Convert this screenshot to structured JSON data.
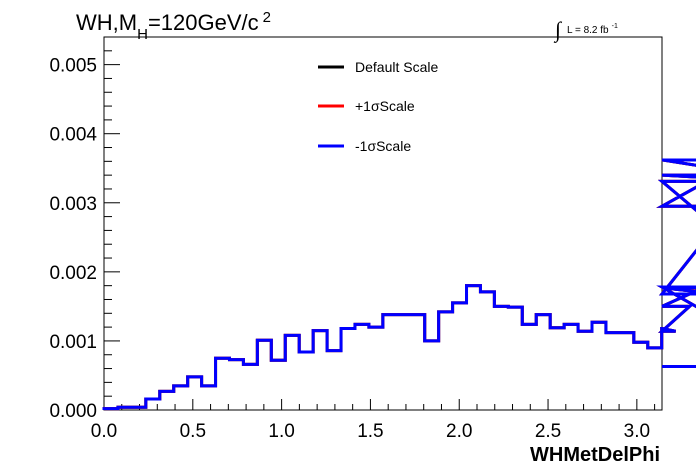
{
  "chart_data": {
    "type": "line",
    "title_main": "WH,M",
    "title_sub": "H",
    "title_rest": "=120GeV/c",
    "title_sup": "2",
    "lumi_symbol": "∫",
    "lumi_label": "L = 8.2 fb",
    "lumi_sup": "-1",
    "xlabel": "WHMetDelPhi",
    "ylabel": "",
    "xlim": [
      0.0,
      3.1416
    ],
    "ylim": [
      0.0,
      0.0054
    ],
    "x_ticks": [
      "0.0",
      "0.5",
      "1.0",
      "1.5",
      "2.0",
      "2.5",
      "3.0"
    ],
    "y_ticks": [
      "0.000",
      "0.001",
      "0.002",
      "0.003",
      "0.004",
      "0.005"
    ],
    "legend_position": "top-center",
    "bin_width": 0.0785,
    "series": [
      {
        "name": "Default Scale",
        "color": "#000000",
        "values": [
          2e-05,
          4e-05,
          4e-05,
          0.00016,
          0.00027,
          0.00035,
          0.00048,
          0.00035,
          0.00075,
          0.00073,
          0.00066,
          0.00101,
          0.00072,
          0.00108,
          0.00084,
          0.00115,
          0.00086,
          0.00118,
          0.00124,
          0.0012,
          0.00138,
          0.00138,
          0.00138,
          0.001,
          0.00142,
          0.00155,
          0.0018,
          0.00171,
          0.0015,
          0.00149,
          0.00124,
          0.00138,
          0.00119,
          0.00124,
          0.00114,
          0.00127,
          0.00112,
          0.00112,
          0.00098,
          0.0009,
          0.00118,
          0.00114,
          0.0015,
          0.00177,
          0.00168,
          0.00295,
          0.00362,
          0.0034,
          0.00331,
          0.00178,
          0.00063
        ]
      },
      {
        "name": "+1σScale",
        "color": "#ff0000",
        "values": [
          2e-05,
          4e-05,
          4e-05,
          0.00016,
          0.00027,
          0.00035,
          0.00048,
          0.00035,
          0.00075,
          0.00073,
          0.00066,
          0.00101,
          0.00072,
          0.00108,
          0.00084,
          0.00115,
          0.00086,
          0.00118,
          0.00124,
          0.0012,
          0.00138,
          0.00138,
          0.00138,
          0.001,
          0.00142,
          0.00155,
          0.0018,
          0.00171,
          0.0015,
          0.00149,
          0.00124,
          0.00138,
          0.00119,
          0.00124,
          0.00114,
          0.00127,
          0.00112,
          0.00112,
          0.00098,
          0.0009,
          0.00118,
          0.00114,
          0.0015,
          0.00177,
          0.00168,
          0.00295,
          0.00362,
          0.0034,
          0.00331,
          0.00178,
          0.00063
        ]
      },
      {
        "name": "-1σScale",
        "color": "#0000ff",
        "values": [
          2e-05,
          4e-05,
          4e-05,
          0.00016,
          0.00027,
          0.00035,
          0.00048,
          0.00035,
          0.00075,
          0.00073,
          0.00066,
          0.00101,
          0.00072,
          0.00108,
          0.00084,
          0.00115,
          0.00086,
          0.00118,
          0.00124,
          0.0012,
          0.00138,
          0.00138,
          0.00138,
          0.001,
          0.00142,
          0.00155,
          0.0018,
          0.00171,
          0.0015,
          0.00149,
          0.00124,
          0.00138,
          0.00119,
          0.00124,
          0.00114,
          0.00127,
          0.00112,
          0.00112,
          0.00098,
          0.0009,
          0.00118,
          0.00114,
          0.0015,
          0.00177,
          0.00168,
          0.00295,
          0.00362,
          0.0034,
          0.00331,
          0.00178,
          0.00063
        ]
      }
    ]
  }
}
